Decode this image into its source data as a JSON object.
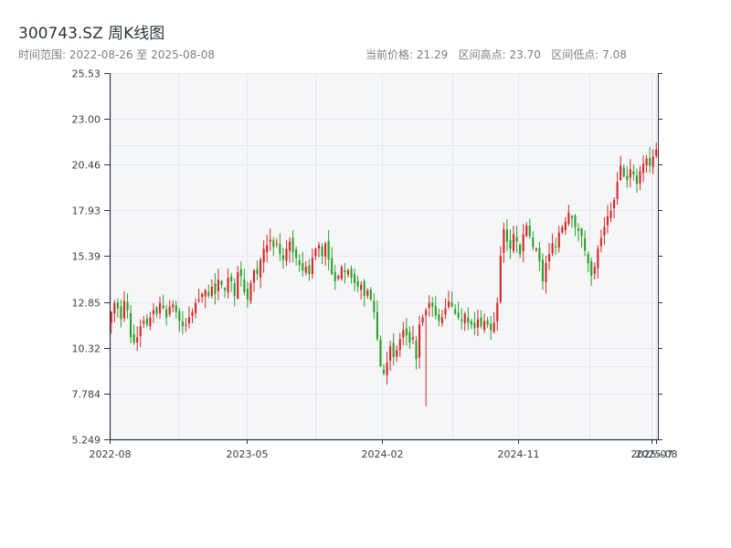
{
  "title": "300743.SZ 周K线图",
  "subtitle_left": "时间范围: 2022-08-26 至 2025-08-08",
  "subtitle_right": "当前价格: 21.29   区间高点: 23.70   区间低点: 7.08",
  "colors": {
    "up": "#d62728",
    "down": "#2ca02c",
    "grid": "#e3e6ea",
    "bg": "#f5f6f8",
    "axis": "#2c3440"
  },
  "chart_data": {
    "type": "candlestick",
    "title": "300743.SZ 周K线图",
    "ylim": [
      5.249,
      25.53
    ],
    "yticks": [
      "25.53",
      "23.00",
      "20.46",
      "17.93",
      "15.39",
      "12.85",
      "10.32",
      "7.784",
      "5.249"
    ],
    "xticks": [
      "2022-08",
      "2023-05",
      "2024-02",
      "2024-11",
      "2025-07",
      "2025-08"
    ],
    "grid": true,
    "weekly_close": [
      12.3,
      12.8,
      12.5,
      11.9,
      12.9,
      12.4,
      10.9,
      10.6,
      10.9,
      11.5,
      11.8,
      11.6,
      12.0,
      12.4,
      12.2,
      12.8,
      12.5,
      12.0,
      12.6,
      12.7,
      12.3,
      11.8,
      11.5,
      11.6,
      12.0,
      12.3,
      12.8,
      13.0,
      13.3,
      13.5,
      13.2,
      13.7,
      13.3,
      14.1,
      13.8,
      13.5,
      14.2,
      14.0,
      13.2,
      14.5,
      14.3,
      13.4,
      13.0,
      13.9,
      14.6,
      14.4,
      15.2,
      15.8,
      16.0,
      16.3,
      15.9,
      16.1,
      15.5,
      15.2,
      15.8,
      16.2,
      15.6,
      15.3,
      14.9,
      14.6,
      14.8,
      14.4,
      15.3,
      15.8,
      16.0,
      15.4,
      16.1,
      15.2,
      14.4,
      14.0,
      14.3,
      14.8,
      14.5,
      14.6,
      14.2,
      13.9,
      13.7,
      13.8,
      13.2,
      13.5,
      13.0,
      12.3,
      10.8,
      9.3,
      8.9,
      9.5,
      10.4,
      9.8,
      10.2,
      10.8,
      11.3,
      11.0,
      10.6,
      10.9,
      9.7,
      11.6,
      12.0,
      12.4,
      12.8,
      12.6,
      12.1,
      11.8,
      12.0,
      12.5,
      12.9,
      12.6,
      12.2,
      12.0,
      11.8,
      12.2,
      11.7,
      11.6,
      11.4,
      11.9,
      11.5,
      11.8,
      11.6,
      11.3,
      11.7,
      12.8,
      15.4,
      16.9,
      16.2,
      15.8,
      16.6,
      16.2,
      15.5,
      16.6,
      17.1,
      16.5,
      15.9,
      15.8,
      15.1,
      14.0,
      15.0,
      15.5,
      16.1,
      15.9,
      16.7,
      17.0,
      17.3,
      17.8,
      17.5,
      17.0,
      16.8,
      16.5,
      15.7,
      15.0,
      14.3,
      14.8,
      15.8,
      16.4,
      17.0,
      17.6,
      17.9,
      18.5,
      19.5,
      20.4,
      19.8,
      19.6,
      20.2,
      19.9,
      19.4,
      20.1,
      20.5,
      20.8,
      20.4,
      20.9,
      21.29
    ],
    "highlights": {
      "current": 21.29,
      "high": 23.7,
      "low": 7.08
    }
  }
}
